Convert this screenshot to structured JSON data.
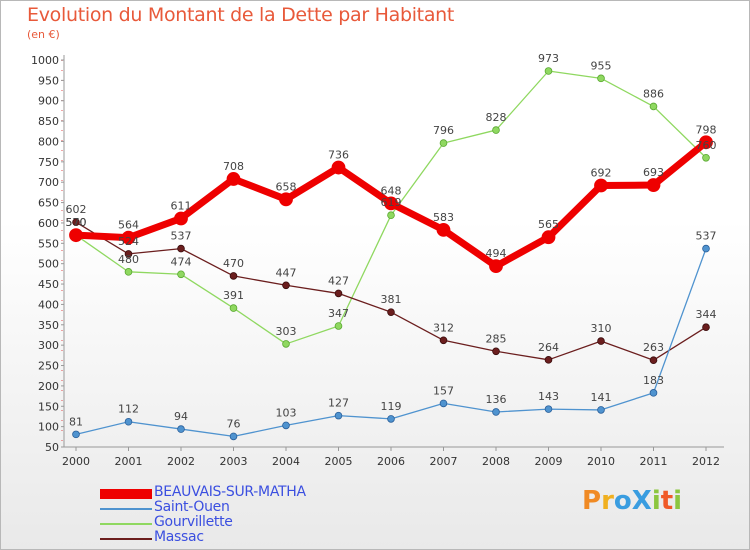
{
  "title": "Evolution du Montant de la Dette par Habitant",
  "subtitle": "(en €)",
  "logo": {
    "text": "ProXiti",
    "letters": [
      "P",
      "r",
      "o",
      "X",
      "i",
      "t",
      "i"
    ],
    "colors": [
      "#f08a24",
      "#f0b020",
      "#3a9de0",
      "#3a9de0",
      "#8cc63f",
      "#f05a28",
      "#8cc63f"
    ]
  },
  "chart_data": {
    "type": "line",
    "title": "Evolution du Montant de la Dette par Habitant",
    "ylabel": "(en €)",
    "xlabel": "",
    "x": [
      "2000",
      "2001",
      "2002",
      "2003",
      "2004",
      "2005",
      "2006",
      "2007",
      "2008",
      "2009",
      "2010",
      "2011",
      "2012"
    ],
    "ylim": [
      50,
      1000
    ],
    "yticks": [
      50,
      100,
      150,
      200,
      250,
      300,
      350,
      400,
      450,
      500,
      550,
      600,
      650,
      700,
      750,
      800,
      850,
      900,
      950,
      1000
    ],
    "grid": false,
    "legend_position": "bottom-left",
    "series": [
      {
        "name": "BEAUVAIS-SUR-MATHA",
        "color": "#ee0000",
        "values": [
          570,
          564,
          611,
          708,
          658,
          736,
          648,
          583,
          494,
          565,
          692,
          693,
          798
        ]
      },
      {
        "name": "Saint-Ouen",
        "color": "#4f93cf",
        "values": [
          81,
          112,
          94,
          76,
          103,
          127,
          119,
          157,
          136,
          143,
          141,
          183,
          537
        ]
      },
      {
        "name": "Gourvillette",
        "color": "#8fd860",
        "values": [
          570,
          480,
          474,
          391,
          303,
          347,
          619,
          796,
          828,
          973,
          955,
          886,
          760
        ]
      },
      {
        "name": "Massac",
        "color": "#6b1e1e",
        "values": [
          602,
          524,
          537,
          470,
          447,
          427,
          381,
          312,
          285,
          264,
          310,
          263,
          344
        ]
      }
    ],
    "data_labels": [
      [
        "570",
        "564",
        "611",
        "708",
        "658",
        "736",
        "648",
        "583",
        "494",
        "565",
        "692",
        "693",
        "798"
      ],
      [
        "81",
        "112",
        "94",
        "76",
        "103",
        "127",
        "119",
        "157",
        "136",
        "143",
        "141",
        "183",
        "537"
      ],
      [
        "570",
        "480",
        "474",
        "391",
        "303",
        "347",
        "619",
        "796",
        "828",
        "973",
        "955",
        "886",
        "760"
      ],
      [
        "602",
        "524",
        "537",
        "470",
        "447",
        "427",
        "381",
        "312",
        "285",
        "264",
        "310",
        "263",
        "344"
      ]
    ]
  }
}
